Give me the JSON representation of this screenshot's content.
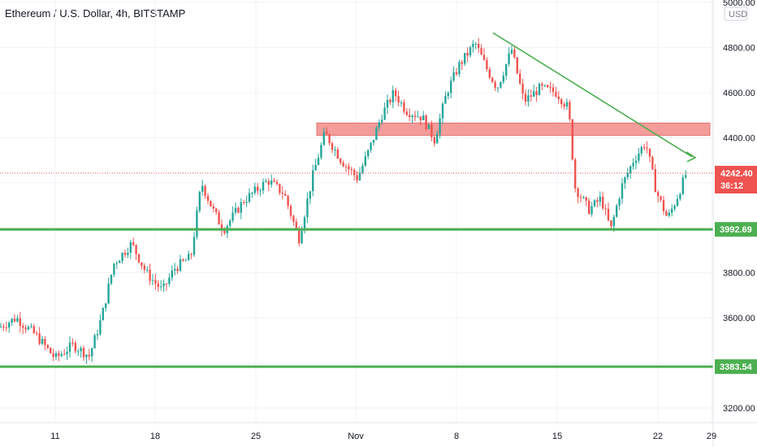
{
  "chart_data": {
    "type": "candlestick",
    "title": "Ethereum / U.S. Dollar, 4h, BITSTAMP",
    "currency": "USD",
    "y_ticks": [
      "5000.00",
      "4800.00",
      "4600.00",
      "4400.00",
      "3800.00",
      "3600.00",
      "3200.00"
    ],
    "x_ticks": [
      "11",
      "18",
      "25",
      "Nov",
      "8",
      "15",
      "22",
      "29"
    ],
    "ylim": [
      3130,
      5030
    ],
    "last_price": {
      "value": 4242.4,
      "label": "4242.40",
      "countdown": "36:12",
      "color": "#ef5350"
    },
    "levels": [
      {
        "name": "support-upper",
        "value": 3992.69,
        "label": "3992.69",
        "color": "#4caf50"
      },
      {
        "name": "support-lower",
        "value": 3383.54,
        "label": "3383.54",
        "color": "#4caf50"
      }
    ],
    "resistance_zone": {
      "from": 4410,
      "to": 4465,
      "color": "#f28b88"
    },
    "trendline": {
      "start_price": 4865,
      "end_price": 4315,
      "color": "#4caf50"
    },
    "colors": {
      "up": "#26a69a",
      "down": "#ef5350",
      "grid": "#f0f3fa"
    }
  }
}
